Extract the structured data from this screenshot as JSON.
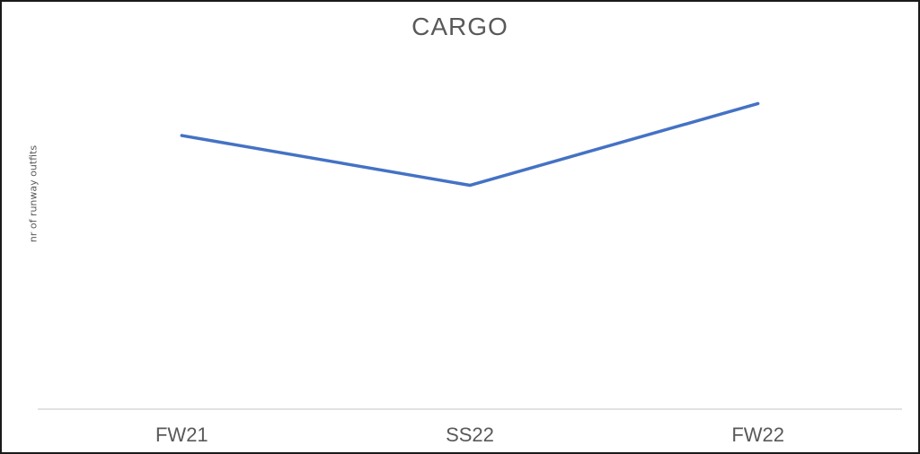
{
  "chart_data": {
    "type": "line",
    "title": "CARGO",
    "xlabel": "",
    "ylabel": "nr of runway outfits",
    "categories": [
      "FW21",
      "SS22",
      "FW22"
    ],
    "series": [
      {
        "values": [
          77,
          63,
          86
        ],
        "color": "#4472C4"
      }
    ],
    "ylim": [
      0,
      100
    ],
    "grid": false,
    "legend": "none"
  }
}
